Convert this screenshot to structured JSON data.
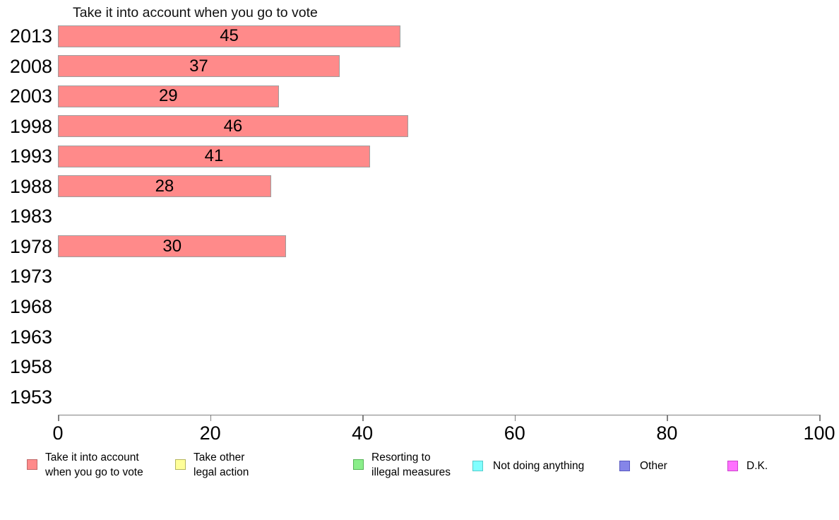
{
  "chart_data": {
    "type": "bar",
    "orientation": "horizontal",
    "title": "Take it into account when you go to vote",
    "categories": [
      "2013",
      "2008",
      "2003",
      "1998",
      "1993",
      "1988",
      "1983",
      "1978",
      "1973",
      "1968",
      "1963",
      "1958",
      "1953"
    ],
    "values": [
      45,
      37,
      29,
      46,
      41,
      28,
      null,
      30,
      null,
      null,
      null,
      null,
      null
    ],
    "xlabel": "",
    "ylabel": "",
    "xlim": [
      0,
      100
    ],
    "xticks": [
      0,
      20,
      40,
      60,
      80,
      100
    ],
    "grid": false,
    "bar_color": "#ff8a8a",
    "bar_border_color": "#9e9e9e",
    "axis_color": "#808080",
    "text_color": "#000000",
    "legend_position": "bottom",
    "legend": [
      {
        "lines": [
          "Take it into account",
          "when you go to vote"
        ],
        "color": "#ff8a8a",
        "border": "#c06868"
      },
      {
        "lines": [
          "Take other",
          "legal action"
        ],
        "color": "#ffff99",
        "border": "#b5b55e"
      },
      {
        "lines": [
          "Resorting to",
          "illegal measures"
        ],
        "color": "#8aee8a",
        "border": "#57b457"
      },
      {
        "lines": [
          "Not doing anything"
        ],
        "color": "#80ffff",
        "border": "#55cccc"
      },
      {
        "lines": [
          "Other"
        ],
        "color": "#8585e8",
        "border": "#5858c0"
      },
      {
        "lines": [
          "D.K."
        ],
        "color": "#ff70ff",
        "border": "#cc44cc"
      }
    ]
  }
}
